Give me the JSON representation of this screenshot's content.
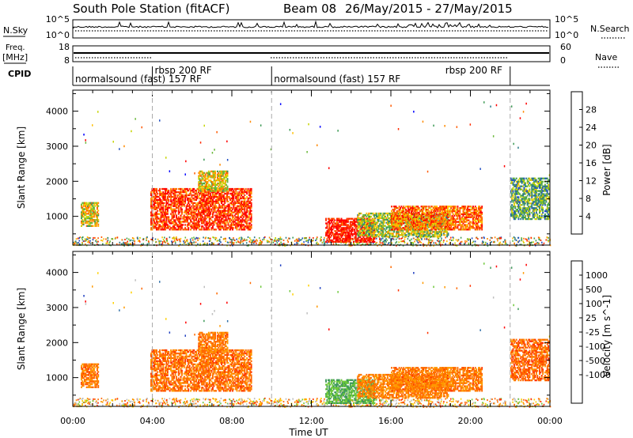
{
  "header": {
    "station": "South Pole Station (fitACF)",
    "beam": "Beam 08",
    "dates": "26/May/2015 - 27/May/2015"
  },
  "strips": {
    "nsky_label": "N.Sky",
    "nsky_ticks": [
      "10^5",
      "10^0"
    ],
    "nsearch_label": "N.Search",
    "nsearch_ticks": [
      "10^5",
      "10^0"
    ],
    "freq_label_1": "Freq.",
    "freq_label_2": "[MHz]",
    "freq_ticks": [
      "18",
      "8"
    ],
    "nave_label": "Nave",
    "nave_ticks": [
      "60",
      "0"
    ],
    "cpid_label": "CPID"
  },
  "cpid_segments": [
    {
      "label": "normalsound (fast) 157 RF",
      "start_h": 0.0,
      "end_h": 4.0
    },
    {
      "label": "rbsp 200 RF",
      "start_h": 4.0,
      "end_h": 10.0
    },
    {
      "label": "normalsound (fast) 157 RF",
      "start_h": 10.0,
      "end_h": 22.0
    },
    {
      "label": "rbsp 200 RF",
      "start_h": 22.0,
      "end_h": 24.0
    }
  ],
  "chart_data": [
    {
      "type": "heatmap",
      "parameter": "Power",
      "xlabel": "",
      "ylabel": "Slant Range [km]",
      "xlim_hours": [
        0,
        24
      ],
      "ylim_km": [
        180,
        4600
      ],
      "yticks": [
        1000,
        2000,
        3000,
        4000
      ],
      "colorbar": {
        "label": "Power [dB]",
        "range": [
          0,
          32
        ],
        "ticks": [
          4,
          8,
          12,
          16,
          20,
          24,
          28
        ],
        "colors": [
          "#0000ff",
          "#1f4ec2",
          "#2e7d8a",
          "#3d9a55",
          "#6ab83a",
          "#c6d400",
          "#ffbe00",
          "#ff8a00",
          "#ff5a00",
          "#ff2a00",
          "#ff0000"
        ]
      },
      "echo_regions": [
        {
          "t0": 0.4,
          "t1": 1.3,
          "r0": 700,
          "r1": 1400,
          "level": 0.55
        },
        {
          "t0": 3.9,
          "t1": 9.0,
          "r0": 600,
          "r1": 1800,
          "level": 0.85
        },
        {
          "t0": 6.3,
          "t1": 7.8,
          "r0": 1700,
          "r1": 2300,
          "level": 0.55
        },
        {
          "t0": 12.7,
          "t1": 15.2,
          "r0": 250,
          "r1": 950,
          "level": 0.95
        },
        {
          "t0": 14.3,
          "t1": 18.9,
          "r0": 400,
          "r1": 1100,
          "level": 0.45
        },
        {
          "t0": 16.0,
          "t1": 20.6,
          "r0": 600,
          "r1": 1300,
          "level": 0.75
        },
        {
          "t0": 22.0,
          "t1": 24.0,
          "r0": 900,
          "r1": 2100,
          "level": 0.35
        }
      ]
    },
    {
      "type": "heatmap",
      "parameter": "Velocity",
      "xlabel": "Time UT",
      "ylabel": "Slant Range [km]",
      "xlim_hours": [
        0,
        24
      ],
      "ylim_km": [
        180,
        4600
      ],
      "yticks": [
        1000,
        2000,
        3000,
        4000
      ],
      "xtick_labels": [
        "00:00",
        "04:00",
        "08:00",
        "12:00",
        "16:00",
        "20:00",
        "00:00"
      ],
      "colorbar": {
        "label": "Velocity [m s^-1]",
        "ticks": [
          "1000",
          "500",
          "100",
          "25",
          "-25",
          "-100",
          "-500",
          "-1000"
        ],
        "colors": [
          "#2040c0",
          "#2f6fa8",
          "#3f9a5a",
          "#6ec83a",
          "#bdbdbd",
          "#ffd000",
          "#ff9900",
          "#ff6a00",
          "#ff3300",
          "#ff0000"
        ]
      },
      "echo_regions": [
        {
          "t0": 0.4,
          "t1": 1.3,
          "r0": 700,
          "r1": 1400,
          "level": 0.72
        },
        {
          "t0": 3.9,
          "t1": 9.0,
          "r0": 600,
          "r1": 1800,
          "level": 0.74
        },
        {
          "t0": 6.3,
          "t1": 7.8,
          "r0": 1700,
          "r1": 2300,
          "level": 0.72
        },
        {
          "t0": 12.7,
          "t1": 15.2,
          "r0": 250,
          "r1": 950,
          "level": 0.32
        },
        {
          "t0": 14.3,
          "t1": 18.9,
          "r0": 400,
          "r1": 1100,
          "level": 0.7
        },
        {
          "t0": 16.0,
          "t1": 20.6,
          "r0": 600,
          "r1": 1300,
          "level": 0.72
        },
        {
          "t0": 22.0,
          "t1": 24.0,
          "r0": 900,
          "r1": 2100,
          "level": 0.76
        }
      ]
    }
  ]
}
